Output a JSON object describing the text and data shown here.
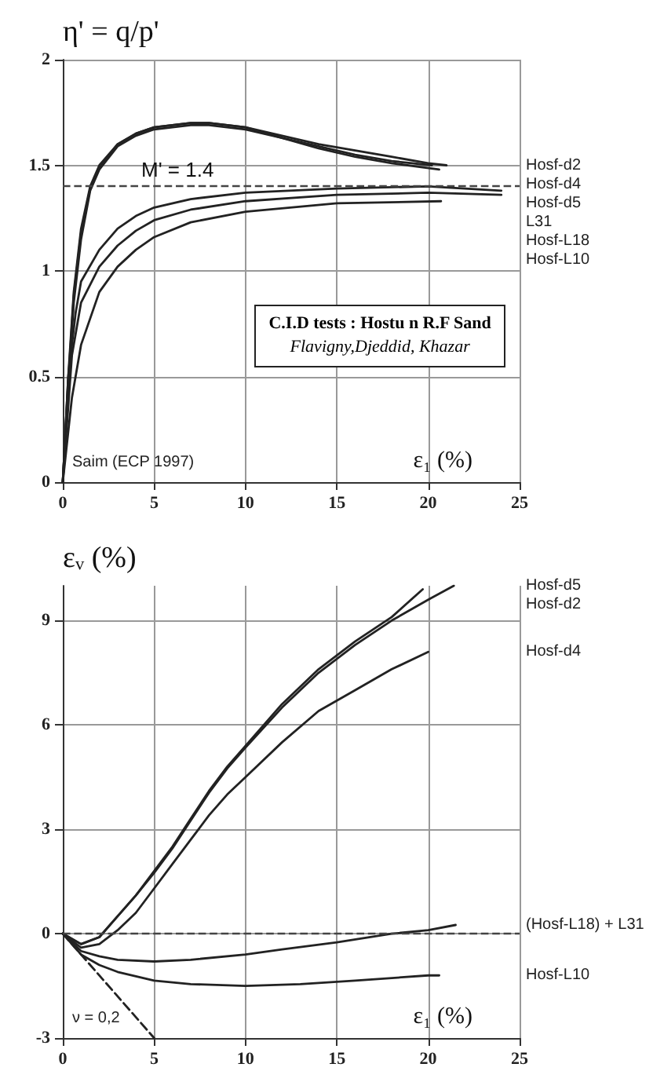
{
  "chart_data": [
    {
      "type": "line",
      "ylabel": "η' = q/p'",
      "xlabel": "ε₁ (%)",
      "xlim": [
        0,
        25
      ],
      "xticks": [
        0,
        5,
        10,
        15,
        20,
        25
      ],
      "ylim": [
        0,
        2
      ],
      "yticks": [
        0,
        0.5,
        1,
        1.5,
        2
      ],
      "grid": true,
      "marker": "none",
      "annotations": [
        "Saim (ECP 1997)",
        "C.I.D tests : Hostu n R.F Sand",
        "Flavigny,Djeddid, Khazar"
      ],
      "ref_lines": [
        {
          "axis": "y",
          "value": 1.4,
          "label": "M' = 1.4",
          "line_style": "dashed"
        }
      ],
      "series": [
        {
          "name": "Hosf-d2",
          "color": "#222222",
          "x": [
            0,
            0.3,
            0.6,
            1,
            1.5,
            2,
            3,
            4,
            5,
            7,
            8,
            10,
            12,
            14,
            16,
            18,
            20,
            21
          ],
          "values": [
            0,
            0.5,
            0.9,
            1.2,
            1.4,
            1.5,
            1.6,
            1.65,
            1.68,
            1.7,
            1.7,
            1.68,
            1.64,
            1.6,
            1.57,
            1.54,
            1.51,
            1.5
          ]
        },
        {
          "name": "Hosf-d4",
          "color": "#222222",
          "x": [
            0,
            0.3,
            0.6,
            1,
            1.5,
            2,
            3,
            4,
            5,
            7,
            8,
            10,
            12,
            14,
            16,
            18,
            20.2
          ],
          "values": [
            0,
            0.45,
            0.85,
            1.15,
            1.38,
            1.48,
            1.59,
            1.64,
            1.67,
            1.69,
            1.69,
            1.67,
            1.63,
            1.59,
            1.55,
            1.52,
            1.5
          ]
        },
        {
          "name": "Hosf-d5",
          "color": "#222222",
          "x": [
            0,
            0.3,
            0.6,
            1,
            1.5,
            2,
            3,
            4,
            5,
            7,
            8,
            10,
            12,
            14,
            16,
            18,
            20.6
          ],
          "values": [
            0,
            0.48,
            0.88,
            1.18,
            1.39,
            1.49,
            1.6,
            1.65,
            1.68,
            1.7,
            1.7,
            1.68,
            1.63,
            1.58,
            1.54,
            1.51,
            1.48
          ]
        },
        {
          "name": "L31",
          "color": "#222222",
          "x": [
            0,
            0.3,
            0.7,
            1,
            2,
            3,
            4,
            5,
            7,
            10,
            15,
            20,
            24
          ],
          "values": [
            0,
            0.5,
            0.8,
            0.95,
            1.1,
            1.2,
            1.26,
            1.3,
            1.34,
            1.37,
            1.39,
            1.4,
            1.38
          ]
        },
        {
          "name": "Hosf-L18",
          "color": "#222222",
          "x": [
            0,
            0.5,
            1,
            2,
            3,
            4,
            5,
            7,
            10,
            15,
            20,
            24
          ],
          "values": [
            0,
            0.6,
            0.85,
            1.02,
            1.12,
            1.19,
            1.24,
            1.29,
            1.33,
            1.36,
            1.37,
            1.36
          ]
        },
        {
          "name": "Hosf-L10",
          "color": "#222222",
          "x": [
            0,
            0.5,
            1,
            2,
            3,
            4,
            5,
            7,
            10,
            15,
            20.7
          ],
          "values": [
            0,
            0.4,
            0.65,
            0.9,
            1.02,
            1.1,
            1.16,
            1.23,
            1.28,
            1.32,
            1.33
          ]
        }
      ]
    },
    {
      "type": "line",
      "ylabel": "εᵥ (%)",
      "xlabel": "ε₁ (%)",
      "xlim": [
        0,
        25
      ],
      "xticks": [
        0,
        5,
        10,
        15,
        20,
        25
      ],
      "ylim": [
        -3,
        10
      ],
      "yticks": [
        -3,
        0,
        3,
        6,
        9
      ],
      "grid": true,
      "marker": "none",
      "annotations": [
        "ν = 0,2"
      ],
      "ref_lines": [
        {
          "axis": "y",
          "value": 0,
          "line_style": "dashed"
        }
      ],
      "series": [
        {
          "name": "Hosf-d2",
          "color": "#222222",
          "x": [
            0,
            1,
            2,
            3,
            4,
            5,
            6,
            7,
            8,
            9,
            10,
            12,
            14,
            16,
            18,
            19.7
          ],
          "values": [
            0,
            -0.3,
            -0.1,
            0.5,
            1.1,
            1.8,
            2.5,
            3.3,
            4.1,
            4.8,
            5.4,
            6.6,
            7.6,
            8.4,
            9.1,
            9.9
          ]
        },
        {
          "name": "Hosf-d5",
          "color": "#222222",
          "x": [
            0,
            1,
            2,
            3,
            4,
            5,
            6,
            7,
            8,
            9,
            10,
            12,
            14,
            16,
            18,
            20,
            21.4
          ],
          "values": [
            0,
            -0.3,
            -0.1,
            0.5,
            1.1,
            1.75,
            2.45,
            3.25,
            4.05,
            4.75,
            5.35,
            6.5,
            7.5,
            8.3,
            9,
            9.6,
            10
          ]
        },
        {
          "name": "Hosf-d4",
          "color": "#222222",
          "x": [
            0,
            1,
            2,
            3,
            4,
            5,
            6,
            7,
            8,
            9,
            10,
            12,
            14,
            16,
            18,
            20
          ],
          "values": [
            0,
            -0.4,
            -0.3,
            0.1,
            0.6,
            1.3,
            2,
            2.7,
            3.4,
            4,
            4.5,
            5.5,
            6.4,
            7,
            7.6,
            8.1
          ]
        },
        {
          "name": "(Hosf-L18) + L31",
          "color": "#222222",
          "x": [
            0,
            1,
            2,
            3,
            5,
            7,
            10,
            12,
            15,
            18,
            20,
            21.5
          ],
          "values": [
            0,
            -0.5,
            -0.65,
            -0.75,
            -0.8,
            -0.75,
            -0.6,
            -0.45,
            -0.25,
            0,
            0.1,
            0.25
          ]
        },
        {
          "name": "Hosf-L10",
          "color": "#222222",
          "x": [
            0,
            1,
            2,
            3,
            5,
            7,
            10,
            13,
            16,
            20,
            20.6
          ],
          "values": [
            0,
            -0.6,
            -0.9,
            -1.1,
            -1.35,
            -1.45,
            -1.5,
            -1.45,
            -1.35,
            -1.2,
            -1.2
          ]
        },
        {
          "color": "#222222",
          "line_style": "dashed",
          "x": [
            0,
            5
          ],
          "values": [
            0,
            -3
          ]
        }
      ]
    }
  ]
}
